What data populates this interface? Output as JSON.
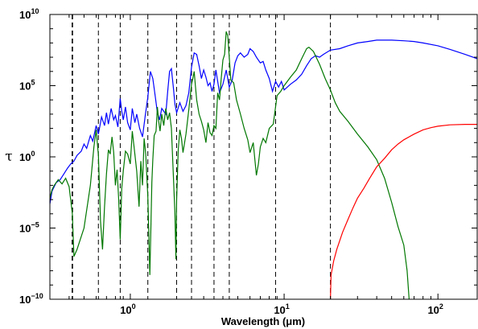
{
  "chart_data": {
    "type": "line",
    "xlabel": "Wavelength (μm)",
    "ylabel": "τ",
    "x_scale": "log",
    "y_scale": "log",
    "xlim": [
      0.3,
      180
    ],
    "ylim": [
      1e-10,
      10000000000.0
    ],
    "x_ticks": [
      {
        "value": 1,
        "label": "10",
        "exp": "0"
      },
      {
        "value": 10,
        "label": "10",
        "exp": "1"
      },
      {
        "value": 100,
        "label": "10",
        "exp": "2"
      }
    ],
    "y_ticks": [
      {
        "value": 1e-10,
        "label": "10",
        "exp": "−10"
      },
      {
        "value": 1e-05,
        "label": "10",
        "exp": "−5"
      },
      {
        "value": 1,
        "label": "10",
        "exp": "0"
      },
      {
        "value": 100000.0,
        "label": "10",
        "exp": "5"
      },
      {
        "value": 10000000000.0,
        "label": "10",
        "exp": "10"
      }
    ],
    "vlines": [
      0.42,
      0.62,
      0.86,
      1.3,
      2.0,
      2.5,
      3.5,
      4.4,
      8.8,
      20
    ],
    "grid": false,
    "legend": "none",
    "series": [
      {
        "color": "#0000ff",
        "points": [
          [
            0.3,
            -3.3
          ],
          [
            0.31,
            -2.4
          ],
          [
            0.33,
            -1.8
          ],
          [
            0.35,
            -1.6
          ],
          [
            0.37,
            -1.2
          ],
          [
            0.39,
            -0.8
          ],
          [
            0.41,
            -0.5
          ],
          [
            0.43,
            -0.3
          ],
          [
            0.45,
            0.1
          ],
          [
            0.48,
            0.4
          ],
          [
            0.5,
            0.9
          ],
          [
            0.52,
            0.6
          ],
          [
            0.55,
            1.5
          ],
          [
            0.57,
            1.1
          ],
          [
            0.6,
            2.2
          ],
          [
            0.62,
            1.6
          ],
          [
            0.65,
            2.8
          ],
          [
            0.68,
            2.2
          ],
          [
            0.7,
            3.1
          ],
          [
            0.72,
            2.3
          ],
          [
            0.75,
            3.4
          ],
          [
            0.78,
            2.6
          ],
          [
            0.8,
            2.9
          ],
          [
            0.83,
            2.1
          ],
          [
            0.86,
            4.1
          ],
          [
            0.88,
            3.2
          ],
          [
            0.9,
            2.6
          ],
          [
            0.93,
            3.5
          ],
          [
            0.96,
            2.4
          ],
          [
            1.0,
            1.9
          ],
          [
            1.03,
            3.4
          ],
          [
            1.07,
            2.4
          ],
          [
            1.1,
            3.0
          ],
          [
            1.15,
            2.0
          ],
          [
            1.2,
            1.4
          ],
          [
            1.25,
            2.9
          ],
          [
            1.3,
            4.2
          ],
          [
            1.35,
            6.0
          ],
          [
            1.4,
            5.5
          ],
          [
            1.45,
            4.3
          ],
          [
            1.5,
            3.1
          ],
          [
            1.55,
            2.6
          ],
          [
            1.6,
            3.4
          ],
          [
            1.7,
            3.0
          ],
          [
            1.75,
            4.6
          ],
          [
            1.8,
            6.0
          ],
          [
            1.85,
            6.2
          ],
          [
            1.9,
            5.0
          ],
          [
            1.95,
            3.7
          ],
          [
            2.0,
            3.1
          ],
          [
            2.1,
            3.8
          ],
          [
            2.2,
            3.2
          ],
          [
            2.3,
            3.6
          ],
          [
            2.4,
            4.5
          ],
          [
            2.5,
            6.3
          ],
          [
            2.6,
            7.3
          ],
          [
            2.7,
            7.2
          ],
          [
            2.8,
            6.4
          ],
          [
            2.9,
            5.5
          ],
          [
            3.0,
            6.1
          ],
          [
            3.1,
            5.6
          ],
          [
            3.2,
            5.0
          ],
          [
            3.3,
            5.2
          ],
          [
            3.4,
            4.6
          ],
          [
            3.5,
            5.1
          ],
          [
            3.6,
            6.1
          ],
          [
            3.7,
            5.3
          ],
          [
            3.8,
            4.5
          ],
          [
            4.0,
            5.1
          ],
          [
            4.2,
            6.1
          ],
          [
            4.4,
            4.9
          ],
          [
            4.6,
            5.4
          ],
          [
            4.8,
            6.6
          ],
          [
            5.0,
            7.1
          ],
          [
            5.2,
            7.3
          ],
          [
            5.5,
            7.0
          ],
          [
            5.8,
            7.2
          ],
          [
            6.0,
            7.6
          ],
          [
            6.3,
            7.4
          ],
          [
            6.6,
            7.0
          ],
          [
            7.0,
            6.6
          ],
          [
            7.3,
            6.7
          ],
          [
            7.6,
            6.1
          ],
          [
            8.0,
            5.5
          ],
          [
            8.4,
            4.6
          ],
          [
            8.8,
            5.3
          ],
          [
            9.2,
            4.9
          ],
          [
            9.6,
            5.3
          ],
          [
            10.0,
            4.7
          ],
          [
            11.0,
            5.1
          ],
          [
            12.0,
            5.4
          ],
          [
            13.0,
            5.8
          ],
          [
            14.0,
            6.4
          ],
          [
            15.0,
            6.9
          ],
          [
            16.0,
            7.1
          ],
          [
            17.0,
            7.0
          ],
          [
            18.0,
            7.2
          ],
          [
            20.0,
            7.5
          ],
          [
            23.0,
            7.6
          ],
          [
            26.0,
            7.8
          ],
          [
            30.0,
            8.0
          ],
          [
            35.0,
            8.1
          ],
          [
            40.0,
            8.2
          ],
          [
            50.0,
            8.2
          ],
          [
            60.0,
            8.15
          ],
          [
            70.0,
            8.1
          ],
          [
            80.0,
            8.0
          ],
          [
            100.0,
            7.8
          ],
          [
            120.0,
            7.55
          ],
          [
            150.0,
            7.2
          ],
          [
            180.0,
            6.9
          ]
        ]
      },
      {
        "color": "#007700",
        "points": [
          [
            0.3,
            -2.9
          ],
          [
            0.31,
            -2.3
          ],
          [
            0.32,
            -2.0
          ],
          [
            0.34,
            -1.6
          ],
          [
            0.36,
            -1.9
          ],
          [
            0.38,
            -1.5
          ],
          [
            0.4,
            -2.1
          ],
          [
            0.42,
            -4.0
          ],
          [
            0.43,
            -7.0
          ],
          [
            0.45,
            -6.5
          ],
          [
            0.5,
            -5.0
          ],
          [
            0.55,
            -2.0
          ],
          [
            0.58,
            0.7
          ],
          [
            0.6,
            1.9
          ],
          [
            0.62,
            0.1
          ],
          [
            0.64,
            -4.5
          ],
          [
            0.66,
            -6.5
          ],
          [
            0.68,
            -3.5
          ],
          [
            0.7,
            -1.2
          ],
          [
            0.72,
            0.5
          ],
          [
            0.74,
            0.2
          ],
          [
            0.76,
            1.4
          ],
          [
            0.78,
            0.3
          ],
          [
            0.8,
            -2.0
          ],
          [
            0.82,
            -0.9
          ],
          [
            0.84,
            -3.0
          ],
          [
            0.86,
            -5.8
          ],
          [
            0.88,
            -2.2
          ],
          [
            0.9,
            -1.0
          ],
          [
            0.93,
            0.4
          ],
          [
            0.96,
            0.2
          ],
          [
            1.0,
            -0.5
          ],
          [
            1.03,
            1.8
          ],
          [
            1.06,
            0.6
          ],
          [
            1.1,
            -1.0
          ],
          [
            1.14,
            -3.5
          ],
          [
            1.17,
            -0.3
          ],
          [
            1.2,
            -2.0
          ],
          [
            1.23,
            1.3
          ],
          [
            1.26,
            0.2
          ],
          [
            1.3,
            -2.8
          ],
          [
            1.32,
            -5.5
          ],
          [
            1.34,
            -8.3
          ],
          [
            1.36,
            -5.0
          ],
          [
            1.38,
            -1.8
          ],
          [
            1.4,
            -0.2
          ],
          [
            1.43,
            1.5
          ],
          [
            1.47,
            1.8
          ],
          [
            1.5,
            3.5
          ],
          [
            1.53,
            2.5
          ],
          [
            1.56,
            1.8
          ],
          [
            1.6,
            3.0
          ],
          [
            1.65,
            2.2
          ],
          [
            1.7,
            3.4
          ],
          [
            1.75,
            2.6
          ],
          [
            1.8,
            3.1
          ],
          [
            1.85,
            2.0
          ],
          [
            1.9,
            -1.0
          ],
          [
            1.95,
            -4.0
          ],
          [
            1.98,
            -7.2
          ],
          [
            2.0,
            -3.0
          ],
          [
            2.05,
            0.5
          ],
          [
            2.1,
            1.9
          ],
          [
            2.15,
            1.3
          ],
          [
            2.2,
            0.3
          ],
          [
            2.3,
            1.6
          ],
          [
            2.4,
            3.3
          ],
          [
            2.5,
            5.1
          ],
          [
            2.55,
            5.5
          ],
          [
            2.6,
            6.0
          ],
          [
            2.65,
            5.0
          ],
          [
            2.7,
            4.0
          ],
          [
            2.8,
            3.0
          ],
          [
            2.9,
            2.5
          ],
          [
            3.0,
            1.9
          ],
          [
            3.1,
            1.0
          ],
          [
            3.2,
            2.4
          ],
          [
            3.3,
            1.7
          ],
          [
            3.4,
            1.5
          ],
          [
            3.5,
            2.2
          ],
          [
            3.6,
            2.0
          ],
          [
            3.7,
            4.5
          ],
          [
            3.8,
            4.0
          ],
          [
            3.9,
            5.5
          ],
          [
            4.0,
            6.8
          ],
          [
            4.1,
            7.2
          ],
          [
            4.2,
            8.8
          ],
          [
            4.3,
            8.5
          ],
          [
            4.4,
            7.0
          ],
          [
            4.5,
            5.4
          ],
          [
            4.7,
            5.2
          ],
          [
            4.9,
            4.0
          ],
          [
            5.2,
            3.0
          ],
          [
            5.5,
            2.0
          ],
          [
            5.8,
            1.2
          ],
          [
            6.0,
            0.3
          ],
          [
            6.3,
            1.0
          ],
          [
            6.6,
            -1.3
          ],
          [
            6.8,
            -0.5
          ],
          [
            7.0,
            0.7
          ],
          [
            7.3,
            1.3
          ],
          [
            7.6,
            1.0
          ],
          [
            8.0,
            2.0
          ],
          [
            8.5,
            2.3
          ],
          [
            9.0,
            4.3
          ],
          [
            9.5,
            4.6
          ],
          [
            10.0,
            5.0
          ],
          [
            11.0,
            5.6
          ],
          [
            12.0,
            6.1
          ],
          [
            13.0,
            6.9
          ],
          [
            14.0,
            7.6
          ],
          [
            14.5,
            7.7
          ],
          [
            15.5,
            7.4
          ],
          [
            17.0,
            6.5
          ],
          [
            18.5,
            5.5
          ],
          [
            20.0,
            4.7
          ],
          [
            21.5,
            3.8
          ],
          [
            23.0,
            3.2
          ],
          [
            26.0,
            2.5
          ],
          [
            30.0,
            1.6
          ],
          [
            35.0,
            0.7
          ],
          [
            40.0,
            -0.2
          ],
          [
            45.0,
            -1.5
          ],
          [
            50.0,
            -3.2
          ],
          [
            55.0,
            -4.9
          ],
          [
            60.0,
            -6.2
          ],
          [
            63.0,
            -8.0
          ],
          [
            65.0,
            -10.0
          ]
        ]
      },
      {
        "color": "#ff0000",
        "points": [
          [
            20.0,
            -10.0
          ],
          [
            20.2,
            -8.3
          ],
          [
            21.0,
            -7.3
          ],
          [
            22.0,
            -6.5
          ],
          [
            24.0,
            -5.3
          ],
          [
            26.0,
            -4.4
          ],
          [
            28.0,
            -3.6
          ],
          [
            30.0,
            -2.9
          ],
          [
            33.0,
            -2.2
          ],
          [
            36.0,
            -1.5
          ],
          [
            40.0,
            -0.7
          ],
          [
            45.0,
            -0.1
          ],
          [
            50.0,
            0.5
          ],
          [
            55.0,
            0.9
          ],
          [
            60.0,
            1.2
          ],
          [
            70.0,
            1.6
          ],
          [
            80.0,
            1.9
          ],
          [
            90.0,
            2.05
          ],
          [
            100.0,
            2.15
          ],
          [
            120.0,
            2.25
          ],
          [
            150.0,
            2.28
          ],
          [
            180.0,
            2.28
          ]
        ]
      }
    ]
  }
}
